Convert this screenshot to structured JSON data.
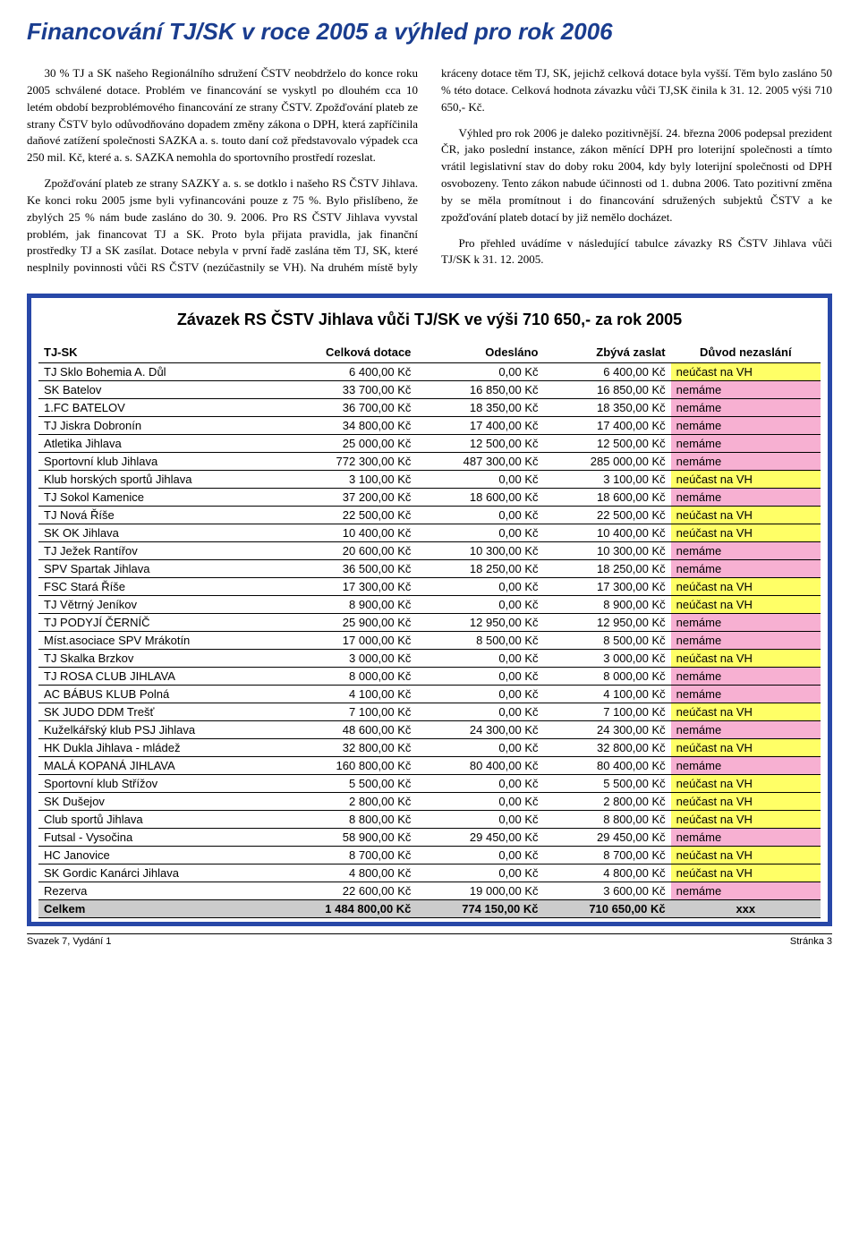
{
  "page": {
    "title": "Financování TJ/SK v roce 2005 a výhled pro rok 2006",
    "body_p1": "30 % TJ a SK našeho Regionálního sdružení ČSTV neobdrželo do konce roku 2005 schválené dotace. Problém ve financování se vyskytl po dlouhém cca 10 letém období bezproblémového financování ze strany ČSTV. Zpožďování plateb ze strany ČSTV bylo odůvodňováno dopadem změny zákona o DPH, která zapříčinila daňové zatížení společnosti SAZKA a. s. touto daní což představovalo výpadek cca 250 mil. Kč, které a. s. SAZKA nemohla do sportovního prostředí rozeslat.",
    "body_p2": "Zpožďování plateb ze strany SAZKY a. s. se dotklo i našeho RS ČSTV Jihlava. Ke konci roku 2005 jsme byli vyfinancováni pouze z 75 %. Bylo přislíbeno, že zbylých 25 % nám bude zasláno do 30. 9. 2006. Pro RS ČSTV Jihlava vyvstal problém, jak financovat TJ a SK. Proto byla přijata pravidla, jak finanční prostředky TJ a SK zasílat. Dotace nebyla v první řadě zaslána těm TJ, SK, které nesplnily povinnosti vůči RS ČSTV (nezúčastnily se VH). Na druhém místě byly kráceny dotace těm TJ, SK, jejichž celková dotace byla vyšší. Těm bylo zasláno 50 % této dotace. Celková hodnota závazku vůči TJ,SK činila k 31. 12. 2005 výši 710 650,- Kč.",
    "body_p3": "Výhled pro rok 2006 je daleko pozitivnější. 24. března 2006 podepsal prezident ČR, jako poslední instance, zákon měnící DPH pro loterijní společnosti a tímto vrátil legislativní stav do doby roku 2004, kdy byly loterijní společnosti od DPH osvobozeny. Tento zákon nabude účinnosti od 1. dubna 2006. Tato pozitivní změna by se měla promítnout i do financování sdružených subjektů ČSTV a ke zpožďování plateb dotací by již nemělo docházet.",
    "body_p4": "Pro přehled uvádíme v následující tabulce závazky RS ČSTV Jihlava vůči TJ/SK k 31. 12. 2005."
  },
  "table": {
    "title": "Závazek RS ČSTV Jihlava vůči TJ/SK ve výši 710 650,- za rok 2005",
    "columns": [
      "TJ-SK",
      "Celková dotace",
      "Odesláno",
      "Zbývá zaslat",
      "Důvod nezaslání"
    ],
    "reason_colors": {
      "neúčast na VH": "#ffff66",
      "nemáme": "#f7b0d2",
      "xxx": "#cccccc"
    },
    "rows": [
      {
        "name": "TJ Sklo Bohemia A. Důl",
        "total": "6 400,00 Kč",
        "sent": "0,00 Kč",
        "remain": "6 400,00 Kč",
        "reason": "neúčast na VH"
      },
      {
        "name": "SK Batelov",
        "total": "33 700,00 Kč",
        "sent": "16 850,00 Kč",
        "remain": "16 850,00 Kč",
        "reason": "nemáme"
      },
      {
        "name": "1.FC BATELOV",
        "total": "36 700,00 Kč",
        "sent": "18 350,00 Kč",
        "remain": "18 350,00 Kč",
        "reason": "nemáme"
      },
      {
        "name": "TJ Jiskra Dobronín",
        "total": "34 800,00 Kč",
        "sent": "17 400,00 Kč",
        "remain": "17 400,00 Kč",
        "reason": "nemáme"
      },
      {
        "name": "Atletika Jihlava",
        "total": "25 000,00 Kč",
        "sent": "12 500,00 Kč",
        "remain": "12 500,00 Kč",
        "reason": "nemáme"
      },
      {
        "name": "Sportovní klub Jihlava",
        "total": "772 300,00 Kč",
        "sent": "487 300,00 Kč",
        "remain": "285 000,00 Kč",
        "reason": "nemáme"
      },
      {
        "name": "Klub horských sportů Jihlava",
        "total": "3 100,00 Kč",
        "sent": "0,00 Kč",
        "remain": "3 100,00 Kč",
        "reason": "neúčast na VH"
      },
      {
        "name": "TJ Sokol Kamenice",
        "total": "37 200,00 Kč",
        "sent": "18 600,00 Kč",
        "remain": "18 600,00 Kč",
        "reason": "nemáme"
      },
      {
        "name": "TJ Nová Říše",
        "total": "22 500,00 Kč",
        "sent": "0,00 Kč",
        "remain": "22 500,00 Kč",
        "reason": "neúčast na VH"
      },
      {
        "name": "SK OK Jihlava",
        "total": "10 400,00 Kč",
        "sent": "0,00 Kč",
        "remain": "10 400,00 Kč",
        "reason": "neúčast na VH"
      },
      {
        "name": "TJ Ježek Rantířov",
        "total": "20 600,00 Kč",
        "sent": "10 300,00 Kč",
        "remain": "10 300,00 Kč",
        "reason": "nemáme"
      },
      {
        "name": "SPV Spartak Jihlava",
        "total": "36 500,00 Kč",
        "sent": "18 250,00 Kč",
        "remain": "18 250,00 Kč",
        "reason": "nemáme"
      },
      {
        "name": "FSC Stará Říše",
        "total": "17 300,00 Kč",
        "sent": "0,00 Kč",
        "remain": "17 300,00 Kč",
        "reason": "neúčast na VH"
      },
      {
        "name": "TJ Větrný Jeníkov",
        "total": "8 900,00 Kč",
        "sent": "0,00 Kč",
        "remain": "8 900,00 Kč",
        "reason": "neúčast na VH"
      },
      {
        "name": "TJ PODYJÍ ČERNÍČ",
        "total": "25 900,00 Kč",
        "sent": "12 950,00 Kč",
        "remain": "12 950,00 Kč",
        "reason": "nemáme"
      },
      {
        "name": "Míst.asociace SPV Mrákotín",
        "total": "17 000,00 Kč",
        "sent": "8 500,00 Kč",
        "remain": "8 500,00 Kč",
        "reason": "nemáme"
      },
      {
        "name": "TJ Skalka Brzkov",
        "total": "3 000,00 Kč",
        "sent": "0,00 Kč",
        "remain": "3 000,00 Kč",
        "reason": "neúčast na VH"
      },
      {
        "name": "TJ ROSA CLUB JIHLAVA",
        "total": "8 000,00 Kč",
        "sent": "0,00 Kč",
        "remain": "8 000,00 Kč",
        "reason": "nemáme"
      },
      {
        "name": "AC BÁBUS KLUB Polná",
        "total": "4 100,00 Kč",
        "sent": "0,00 Kč",
        "remain": "4 100,00 Kč",
        "reason": "nemáme"
      },
      {
        "name": "SK JUDO DDM Trešť",
        "total": "7 100,00 Kč",
        "sent": "0,00 Kč",
        "remain": "7 100,00 Kč",
        "reason": "neúčast na VH"
      },
      {
        "name": "Kuželkářský klub PSJ Jihlava",
        "total": "48 600,00 Kč",
        "sent": "24 300,00 Kč",
        "remain": "24 300,00 Kč",
        "reason": "nemáme"
      },
      {
        "name": "HK Dukla Jihlava - mládež",
        "total": "32 800,00 Kč",
        "sent": "0,00 Kč",
        "remain": "32 800,00 Kč",
        "reason": "neúčast na VH"
      },
      {
        "name": "MALÁ KOPANÁ JIHLAVA",
        "total": "160 800,00 Kč",
        "sent": "80 400,00 Kč",
        "remain": "80 400,00 Kč",
        "reason": "nemáme"
      },
      {
        "name": "Sportovní klub Střížov",
        "total": "5 500,00 Kč",
        "sent": "0,00 Kč",
        "remain": "5 500,00 Kč",
        "reason": "neúčast na VH"
      },
      {
        "name": "SK Dušejov",
        "total": "2 800,00 Kč",
        "sent": "0,00 Kč",
        "remain": "2 800,00 Kč",
        "reason": "neúčast na VH"
      },
      {
        "name": "Club sportů Jihlava",
        "total": "8 800,00 Kč",
        "sent": "0,00 Kč",
        "remain": "8 800,00 Kč",
        "reason": "neúčast na VH"
      },
      {
        "name": "Futsal - Vysočina",
        "total": "58 900,00 Kč",
        "sent": "29 450,00 Kč",
        "remain": "29 450,00 Kč",
        "reason": "nemáme"
      },
      {
        "name": "HC Janovice",
        "total": "8 700,00 Kč",
        "sent": "0,00 Kč",
        "remain": "8 700,00 Kč",
        "reason": "neúčast na VH"
      },
      {
        "name": "SK Gordic Kanárci Jihlava",
        "total": "4 800,00 Kč",
        "sent": "0,00 Kč",
        "remain": "4 800,00 Kč",
        "reason": "neúčast na VH"
      },
      {
        "name": "Rezerva",
        "total": "22 600,00 Kč",
        "sent": "19 000,00 Kč",
        "remain": "3 600,00 Kč",
        "reason": "nemáme"
      }
    ],
    "totals": {
      "name": "Celkem",
      "total": "1 484 800,00 Kč",
      "sent": "774 150,00 Kč",
      "remain": "710 650,00 Kč",
      "reason": "xxx"
    }
  },
  "footer": {
    "left": "Svazek 7, Vydání 1",
    "right": "Stránka 3"
  }
}
